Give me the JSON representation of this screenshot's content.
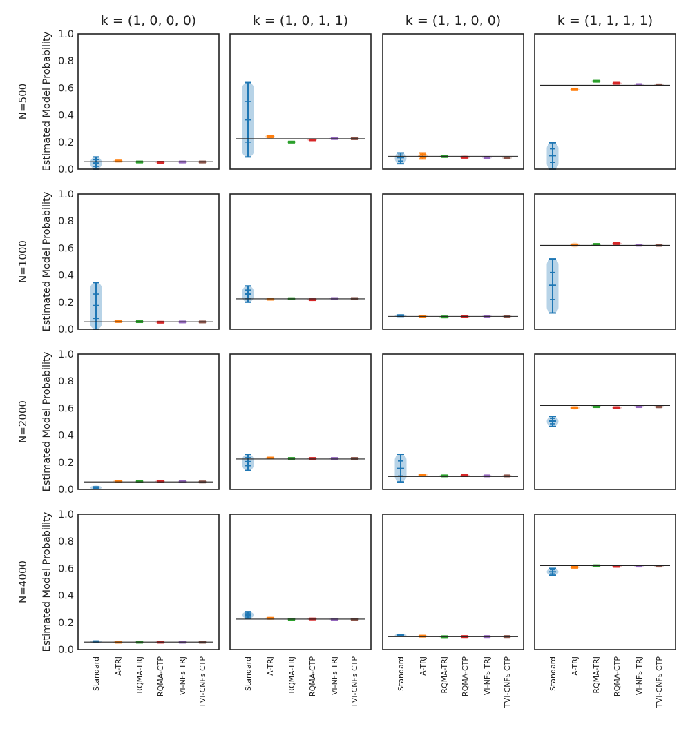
{
  "figure": {
    "ylabel": "Estimated Model Probability",
    "yticks": [
      "0.0",
      "0.2",
      "0.4",
      "0.6",
      "0.8",
      "1.0"
    ]
  },
  "chart_data": {
    "type": "violin",
    "ylim": [
      0,
      1
    ],
    "grid": false,
    "methods": [
      "Standard",
      "A-TRJ",
      "RQMA-TRJ",
      "RQMA-CTP",
      "VI-NFs TRJ",
      "TVI-CNFs CTP"
    ],
    "colors": [
      "#1f77b4",
      "#ff7f0e",
      "#2ca02c",
      "#d62728",
      "#9467bd",
      "#8c564b"
    ],
    "columns": [
      "k = (1, 0, 0, 0)",
      "k = (1, 0, 1, 1)",
      "k = (1, 1, 0, 0)",
      "k = (1, 1, 1, 1)"
    ],
    "rows": [
      "N=500",
      "N=1000",
      "N=2000",
      "N=4000"
    ],
    "true_values": [
      0.055,
      0.225,
      0.095,
      0.62
    ],
    "panels": [
      [
        {
          "series": [
            {
              "min": 0.0,
              "q1": 0.02,
              "median": 0.045,
              "q3": 0.07,
              "max": 0.09
            },
            {
              "min": 0.055,
              "q1": 0.057,
              "median": 0.06,
              "q3": 0.063,
              "max": 0.065
            },
            {
              "min": 0.05,
              "q1": 0.051,
              "median": 0.053,
              "q3": 0.055,
              "max": 0.056
            },
            {
              "min": 0.047,
              "q1": 0.049,
              "median": 0.051,
              "q3": 0.053,
              "max": 0.055
            },
            {
              "min": 0.05,
              "q1": 0.051,
              "median": 0.053,
              "q3": 0.055,
              "max": 0.056
            },
            {
              "min": 0.05,
              "q1": 0.051,
              "median": 0.053,
              "q3": 0.055,
              "max": 0.056
            }
          ]
        },
        {
          "series": [
            {
              "min": 0.09,
              "q1": 0.2,
              "median": 0.365,
              "q3": 0.5,
              "max": 0.64
            },
            {
              "min": 0.225,
              "q1": 0.232,
              "median": 0.24,
              "q3": 0.248,
              "max": 0.255
            },
            {
              "min": 0.196,
              "q1": 0.198,
              "median": 0.2,
              "q3": 0.202,
              "max": 0.204
            },
            {
              "min": 0.21,
              "q1": 0.213,
              "median": 0.217,
              "q3": 0.221,
              "max": 0.224
            },
            {
              "min": 0.222,
              "q1": 0.224,
              "median": 0.226,
              "q3": 0.228,
              "max": 0.23
            },
            {
              "min": 0.22,
              "q1": 0.222,
              "median": 0.225,
              "q3": 0.228,
              "max": 0.23
            }
          ]
        },
        {
          "series": [
            {
              "min": 0.04,
              "q1": 0.06,
              "median": 0.085,
              "q3": 0.105,
              "max": 0.12
            },
            {
              "min": 0.075,
              "q1": 0.085,
              "median": 0.095,
              "q3": 0.11,
              "max": 0.12
            },
            {
              "min": 0.088,
              "q1": 0.09,
              "median": 0.093,
              "q3": 0.096,
              "max": 0.098
            },
            {
              "min": 0.075,
              "q1": 0.08,
              "median": 0.088,
              "q3": 0.094,
              "max": 0.1
            },
            {
              "min": 0.078,
              "q1": 0.081,
              "median": 0.085,
              "q3": 0.089,
              "max": 0.092
            },
            {
              "min": 0.075,
              "q1": 0.078,
              "median": 0.082,
              "q3": 0.086,
              "max": 0.09
            }
          ]
        },
        {
          "series": [
            {
              "min": 0.0,
              "q1": 0.05,
              "median": 0.1,
              "q3": 0.15,
              "max": 0.195
            },
            {
              "min": 0.58,
              "q1": 0.583,
              "median": 0.588,
              "q3": 0.593,
              "max": 0.596
            },
            {
              "min": 0.646,
              "q1": 0.648,
              "median": 0.65,
              "q3": 0.652,
              "max": 0.654
            },
            {
              "min": 0.625,
              "q1": 0.63,
              "median": 0.635,
              "q3": 0.64,
              "max": 0.645
            },
            {
              "min": 0.618,
              "q1": 0.621,
              "median": 0.625,
              "q3": 0.629,
              "max": 0.632
            },
            {
              "min": 0.616,
              "q1": 0.619,
              "median": 0.623,
              "q3": 0.627,
              "max": 0.63
            }
          ]
        }
      ],
      [
        {
          "series": [
            {
              "min": 0.0,
              "q1": 0.08,
              "median": 0.175,
              "q3": 0.26,
              "max": 0.345
            },
            {
              "min": 0.053,
              "q1": 0.055,
              "median": 0.057,
              "q3": 0.059,
              "max": 0.061
            },
            {
              "min": 0.052,
              "q1": 0.054,
              "median": 0.056,
              "q3": 0.058,
              "max": 0.06
            },
            {
              "min": 0.048,
              "q1": 0.05,
              "median": 0.052,
              "q3": 0.054,
              "max": 0.056
            },
            {
              "min": 0.05,
              "q1": 0.052,
              "median": 0.054,
              "q3": 0.056,
              "max": 0.058
            },
            {
              "min": 0.05,
              "q1": 0.052,
              "median": 0.054,
              "q3": 0.056,
              "max": 0.058
            }
          ]
        },
        {
          "series": [
            {
              "min": 0.2,
              "q1": 0.225,
              "median": 0.26,
              "q3": 0.29,
              "max": 0.32
            },
            {
              "min": 0.215,
              "q1": 0.218,
              "median": 0.222,
              "q3": 0.226,
              "max": 0.229
            },
            {
              "min": 0.222,
              "q1": 0.224,
              "median": 0.226,
              "q3": 0.228,
              "max": 0.23
            },
            {
              "min": 0.212,
              "q1": 0.215,
              "median": 0.219,
              "q3": 0.223,
              "max": 0.226
            },
            {
              "min": 0.222,
              "q1": 0.224,
              "median": 0.227,
              "q3": 0.23,
              "max": 0.232
            },
            {
              "min": 0.222,
              "q1": 0.224,
              "median": 0.227,
              "q3": 0.23,
              "max": 0.232
            }
          ]
        },
        {
          "series": [
            {
              "min": 0.095,
              "q1": 0.097,
              "median": 0.1,
              "q3": 0.103,
              "max": 0.106
            },
            {
              "min": 0.088,
              "q1": 0.091,
              "median": 0.096,
              "q3": 0.101,
              "max": 0.105
            },
            {
              "min": 0.088,
              "q1": 0.089,
              "median": 0.091,
              "q3": 0.093,
              "max": 0.094
            },
            {
              "min": 0.089,
              "q1": 0.091,
              "median": 0.093,
              "q3": 0.095,
              "max": 0.097
            },
            {
              "min": 0.092,
              "q1": 0.094,
              "median": 0.096,
              "q3": 0.098,
              "max": 0.1
            },
            {
              "min": 0.091,
              "q1": 0.093,
              "median": 0.095,
              "q3": 0.097,
              "max": 0.099
            }
          ]
        },
        {
          "series": [
            {
              "min": 0.12,
              "q1": 0.22,
              "median": 0.325,
              "q3": 0.42,
              "max": 0.52
            },
            {
              "min": 0.605,
              "q1": 0.612,
              "median": 0.622,
              "q3": 0.632,
              "max": 0.64
            },
            {
              "min": 0.622,
              "q1": 0.624,
              "median": 0.627,
              "q3": 0.63,
              "max": 0.632
            },
            {
              "min": 0.625,
              "q1": 0.629,
              "median": 0.634,
              "q3": 0.638,
              "max": 0.642
            },
            {
              "min": 0.614,
              "q1": 0.617,
              "median": 0.621,
              "q3": 0.625,
              "max": 0.628
            },
            {
              "min": 0.613,
              "q1": 0.616,
              "median": 0.62,
              "q3": 0.624,
              "max": 0.627
            }
          ]
        }
      ],
      [
        {
          "series": [
            {
              "min": 0.0,
              "q1": 0.008,
              "median": 0.015,
              "q3": 0.022,
              "max": 0.028
            },
            {
              "min": 0.055,
              "q1": 0.057,
              "median": 0.06,
              "q3": 0.063,
              "max": 0.065
            },
            {
              "min": 0.053,
              "q1": 0.055,
              "median": 0.057,
              "q3": 0.059,
              "max": 0.061
            },
            {
              "min": 0.053,
              "q1": 0.056,
              "median": 0.059,
              "q3": 0.062,
              "max": 0.065
            },
            {
              "min": 0.052,
              "q1": 0.054,
              "median": 0.056,
              "q3": 0.058,
              "max": 0.06
            },
            {
              "min": 0.051,
              "q1": 0.053,
              "median": 0.055,
              "q3": 0.057,
              "max": 0.059
            }
          ]
        },
        {
          "series": [
            {
              "min": 0.14,
              "q1": 0.175,
              "median": 0.205,
              "q3": 0.235,
              "max": 0.26
            },
            {
              "min": 0.225,
              "q1": 0.228,
              "median": 0.232,
              "q3": 0.236,
              "max": 0.239
            },
            {
              "min": 0.225,
              "q1": 0.227,
              "median": 0.229,
              "q3": 0.231,
              "max": 0.233
            },
            {
              "min": 0.22,
              "q1": 0.224,
              "median": 0.229,
              "q3": 0.234,
              "max": 0.238
            },
            {
              "min": 0.225,
              "q1": 0.227,
              "median": 0.229,
              "q3": 0.231,
              "max": 0.233
            },
            {
              "min": 0.225,
              "q1": 0.227,
              "median": 0.229,
              "q3": 0.231,
              "max": 0.233
            }
          ]
        },
        {
          "series": [
            {
              "min": 0.055,
              "q1": 0.1,
              "median": 0.155,
              "q3": 0.21,
              "max": 0.26
            },
            {
              "min": 0.1,
              "q1": 0.103,
              "median": 0.107,
              "q3": 0.111,
              "max": 0.114
            },
            {
              "min": 0.096,
              "q1": 0.098,
              "median": 0.1,
              "q3": 0.102,
              "max": 0.104
            },
            {
              "min": 0.096,
              "q1": 0.099,
              "median": 0.102,
              "q3": 0.105,
              "max": 0.108
            },
            {
              "min": 0.096,
              "q1": 0.098,
              "median": 0.1,
              "q3": 0.102,
              "max": 0.104
            },
            {
              "min": 0.096,
              "q1": 0.098,
              "median": 0.1,
              "q3": 0.102,
              "max": 0.104
            }
          ]
        },
        {
          "series": [
            {
              "min": 0.465,
              "q1": 0.485,
              "median": 0.505,
              "q3": 0.525,
              "max": 0.54
            },
            {
              "min": 0.59,
              "q1": 0.595,
              "median": 0.603,
              "q3": 0.611,
              "max": 0.616
            },
            {
              "min": 0.608,
              "q1": 0.61,
              "median": 0.612,
              "q3": 0.614,
              "max": 0.616
            },
            {
              "min": 0.592,
              "q1": 0.597,
              "median": 0.604,
              "q3": 0.611,
              "max": 0.616
            },
            {
              "min": 0.608,
              "q1": 0.61,
              "median": 0.612,
              "q3": 0.614,
              "max": 0.616
            },
            {
              "min": 0.606,
              "q1": 0.608,
              "median": 0.611,
              "q3": 0.614,
              "max": 0.616
            }
          ]
        }
      ],
      [
        {
          "series": [
            {
              "min": 0.05,
              "q1": 0.054,
              "median": 0.058,
              "q3": 0.062,
              "max": 0.066
            },
            {
              "min": 0.05,
              "q1": 0.052,
              "median": 0.054,
              "q3": 0.056,
              "max": 0.058
            },
            {
              "min": 0.05,
              "q1": 0.052,
              "median": 0.054,
              "q3": 0.056,
              "max": 0.058
            },
            {
              "min": 0.05,
              "q1": 0.052,
              "median": 0.054,
              "q3": 0.056,
              "max": 0.058
            },
            {
              "min": 0.05,
              "q1": 0.052,
              "median": 0.054,
              "q3": 0.056,
              "max": 0.058
            },
            {
              "min": 0.05,
              "q1": 0.052,
              "median": 0.054,
              "q3": 0.056,
              "max": 0.058
            }
          ]
        },
        {
          "series": [
            {
              "min": 0.23,
              "q1": 0.24,
              "median": 0.255,
              "q3": 0.27,
              "max": 0.28
            },
            {
              "min": 0.224,
              "q1": 0.227,
              "median": 0.231,
              "q3": 0.235,
              "max": 0.238
            },
            {
              "min": 0.221,
              "q1": 0.222,
              "median": 0.224,
              "q3": 0.226,
              "max": 0.227
            },
            {
              "min": 0.221,
              "q1": 0.223,
              "median": 0.226,
              "q3": 0.229,
              "max": 0.231
            },
            {
              "min": 0.221,
              "q1": 0.222,
              "median": 0.224,
              "q3": 0.226,
              "max": 0.227
            },
            {
              "min": 0.221,
              "q1": 0.222,
              "median": 0.224,
              "q3": 0.226,
              "max": 0.227
            }
          ]
        },
        {
          "series": [
            {
              "min": 0.098,
              "q1": 0.101,
              "median": 0.105,
              "q3": 0.109,
              "max": 0.112
            },
            {
              "min": 0.095,
              "q1": 0.097,
              "median": 0.099,
              "q3": 0.101,
              "max": 0.103
            },
            {
              "min": 0.092,
              "q1": 0.093,
              "median": 0.095,
              "q3": 0.097,
              "max": 0.098
            },
            {
              "min": 0.093,
              "q1": 0.094,
              "median": 0.096,
              "q3": 0.098,
              "max": 0.099
            },
            {
              "min": 0.093,
              "q1": 0.094,
              "median": 0.096,
              "q3": 0.098,
              "max": 0.099
            },
            {
              "min": 0.093,
              "q1": 0.094,
              "median": 0.096,
              "q3": 0.098,
              "max": 0.099
            }
          ]
        },
        {
          "series": [
            {
              "min": 0.55,
              "q1": 0.56,
              "median": 0.575,
              "q3": 0.59,
              "max": 0.6
            },
            {
              "min": 0.6,
              "q1": 0.603,
              "median": 0.608,
              "q3": 0.613,
              "max": 0.616
            },
            {
              "min": 0.616,
              "q1": 0.617,
              "median": 0.619,
              "q3": 0.621,
              "max": 0.622
            },
            {
              "min": 0.61,
              "q1": 0.612,
              "median": 0.615,
              "q3": 0.618,
              "max": 0.62
            },
            {
              "min": 0.614,
              "q1": 0.615,
              "median": 0.617,
              "q3": 0.619,
              "max": 0.62
            },
            {
              "min": 0.614,
              "q1": 0.615,
              "median": 0.617,
              "q3": 0.619,
              "max": 0.62
            }
          ]
        }
      ]
    ]
  }
}
